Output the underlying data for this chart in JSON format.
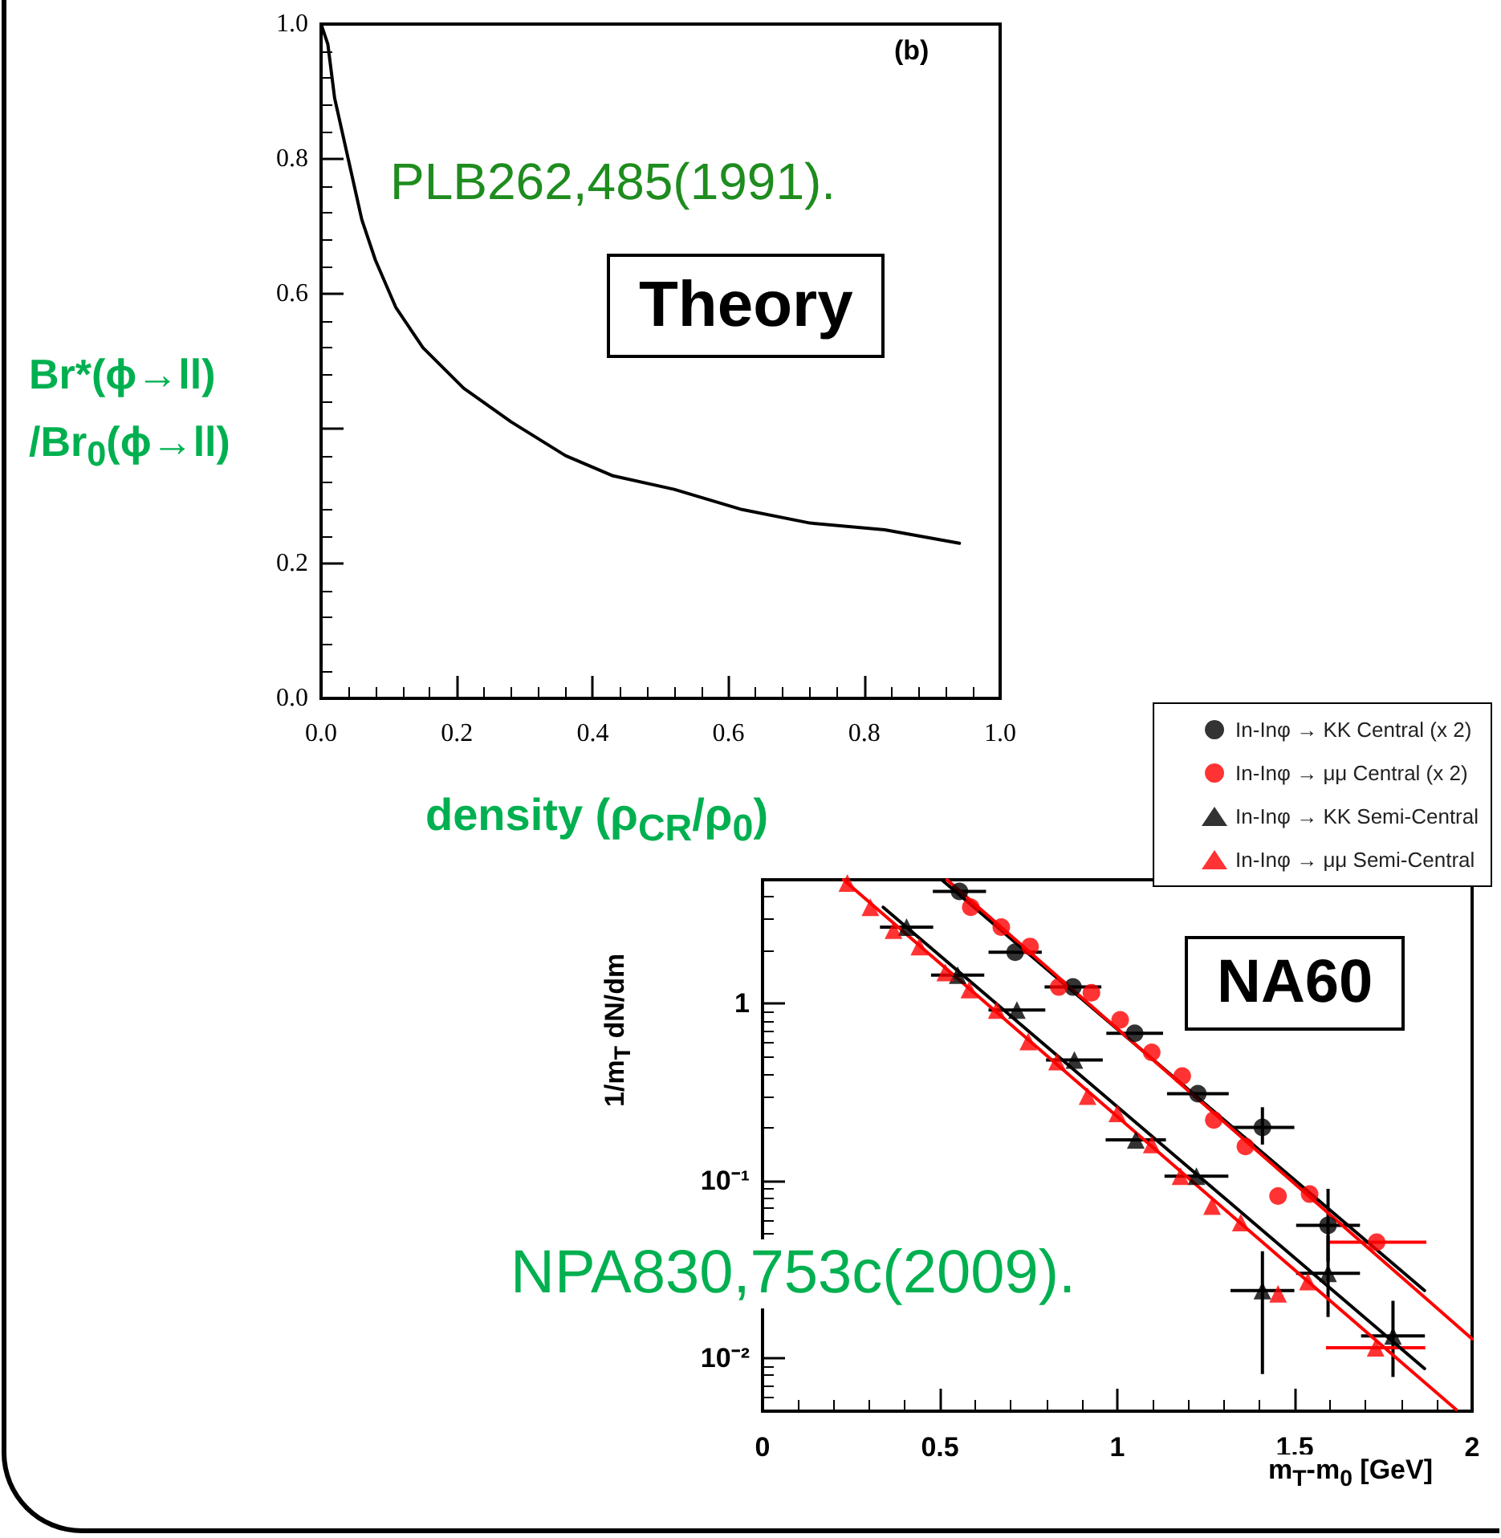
{
  "chart_data": [
    {
      "type": "line",
      "xlabel": "density (ρ$_{CR}$/ρ$_{0}$)",
      "ylabel": "Br*(ϕ→ll)\n/Br$_{0}$(ϕ→ll)",
      "annotations": [
        "(b)",
        "PLB262,485(1991).",
        "Theory"
      ],
      "x": [
        0,
        0.01,
        0.02,
        0.04,
        0.06,
        0.08,
        0.11,
        0.15,
        0.21,
        0.28,
        0.36,
        0.43,
        0.52,
        0.62,
        0.72,
        0.83,
        0.94
      ],
      "series": [
        {
          "color": "#000000",
          "values": [
            1.0,
            0.97,
            0.89,
            0.8,
            0.71,
            0.65,
            0.58,
            0.52,
            0.46,
            0.41,
            0.36,
            0.33,
            0.31,
            0.28,
            0.26,
            0.25,
            0.23
          ]
        }
      ],
      "xlim": [
        0,
        1
      ],
      "ylim": [
        0,
        1
      ],
      "xticks": [
        {
          "value": 0,
          "label": "0.0"
        },
        {
          "value": 0.2,
          "label": "0.2"
        },
        {
          "value": 0.4,
          "label": "0.4"
        },
        {
          "value": 0.6,
          "label": "0.6"
        },
        {
          "value": 0.8,
          "label": "0.8"
        },
        {
          "value": 1,
          "label": "1.0"
        }
      ],
      "yticks": [
        {
          "value": 0,
          "label": "0.0"
        },
        {
          "value": 0.2,
          "label": "0.2"
        },
        {
          "value": 0.4,
          "label": null
        },
        {
          "value": 0.6,
          "label": "0.6"
        },
        {
          "value": 0.8,
          "label": "0.8"
        },
        {
          "value": 1,
          "label": "1.0"
        }
      ]
    },
    {
      "type": "scatter",
      "xlabel": "m$_{T}$-m$_{0}$ [GeV]",
      "ylabel": "1/m$_{T}$ dN/dm",
      "annotations": [
        "NA60",
        "NPA830,753c(2009)."
      ],
      "log": "y",
      "legend": "top right",
      "series": [
        {
          "name": "In-Inφ → KK Central (x 2)",
          "color": "#000000",
          "marker": "circle",
          "x": [
            0.555,
            0.712,
            0.875,
            1.049,
            1.227,
            1.409,
            1.594
          ],
          "values": [
            4.3,
            1.95,
            1.24,
            0.68,
            0.31,
            0.2,
            0.056
          ],
          "xerrors": [
            0.075,
            0.075,
            0.08,
            0.08,
            0.087,
            0.09,
            0.09
          ],
          "errors": [
            null,
            null,
            null,
            null,
            null,
            [
              0.16,
              0.26
            ],
            [
              0.035,
              0.09
            ]
          ]
        },
        {
          "name": "In-Inφ → μμ Central (x 2)",
          "color": "#ff0000",
          "marker": "circle",
          "x": [
            0.587,
            0.673,
            0.754,
            0.835,
            0.927,
            1.008,
            1.097,
            1.183,
            1.272,
            1.361,
            1.453,
            1.542,
            1.731
          ],
          "values": [
            3.5,
            2.7,
            2.1,
            1.24,
            1.15,
            0.81,
            0.53,
            0.39,
            0.22,
            0.156,
            0.082,
            0.084,
            0.045
          ],
          "xerrors": [
            null,
            null,
            null,
            null,
            null,
            null,
            null,
            null,
            null,
            null,
            null,
            null,
            0.14
          ]
        },
        {
          "name": "In-Inφ → KK Semi-Central",
          "color": "#000000",
          "marker": "triangle",
          "x": [
            0.406,
            0.55,
            0.717,
            0.879,
            1.052,
            1.223,
            1.409,
            1.594,
            1.777
          ],
          "values": [
            2.7,
            1.45,
            0.92,
            0.48,
            0.17,
            0.106,
            0.024,
            0.03,
            0.0133
          ],
          "xerrors": [
            0.075,
            0.075,
            0.08,
            0.08,
            0.085,
            0.09,
            0.09,
            0.09,
            0.09
          ],
          "errors": [
            null,
            null,
            null,
            null,
            null,
            null,
            [
              0.0081,
              0.04
            ],
            [
              0.017,
              0.049
            ],
            [
              0.0078,
              0.021
            ]
          ]
        },
        {
          "name": "In-Inφ → μμ Semi-Central",
          "color": "#ff0000",
          "marker": "triangle",
          "x": [
            0.239,
            0.304,
            0.369,
            0.442,
            0.515,
            0.583,
            0.66,
            0.749,
            0.83,
            0.916,
            1.0,
            1.097,
            1.178,
            1.267,
            1.348,
            1.453,
            1.537,
            1.728
          ],
          "values": [
            4.8,
            3.5,
            2.6,
            2.1,
            1.5,
            1.2,
            0.92,
            0.61,
            0.47,
            0.3,
            0.24,
            0.16,
            0.106,
            0.072,
            0.058,
            0.023,
            0.027,
            0.0114
          ],
          "xerrors": [
            null,
            null,
            null,
            null,
            null,
            null,
            null,
            null,
            null,
            null,
            null,
            null,
            null,
            null,
            null,
            null,
            null,
            0.14
          ]
        },
        {
          "type": "line",
          "color": "#000000",
          "x": [
            0.505,
            1.866
          ],
          "values": [
            5.0,
            0.024
          ]
        },
        {
          "type": "line",
          "color": "#ff0000",
          "x": [
            0.52,
            2.0
          ],
          "values": [
            5.0,
            0.0128
          ]
        },
        {
          "type": "line",
          "color": "#000000",
          "x": [
            0.34,
            1.866
          ],
          "values": [
            3.5,
            0.0087
          ]
        },
        {
          "type": "line",
          "color": "#ff0000",
          "x": [
            0.228,
            1.955
          ],
          "values": [
            5.0,
            0.0051
          ]
        }
      ],
      "xlim": [
        0,
        2
      ],
      "ylim": [
        0.005,
        5
      ],
      "xticks": [
        0,
        0.5,
        1,
        1.5,
        2
      ],
      "yticks": [
        {
          "value": 0.01,
          "label": "10⁻²"
        },
        {
          "value": 0.1,
          "label": "10⁻¹"
        },
        1
      ]
    }
  ]
}
